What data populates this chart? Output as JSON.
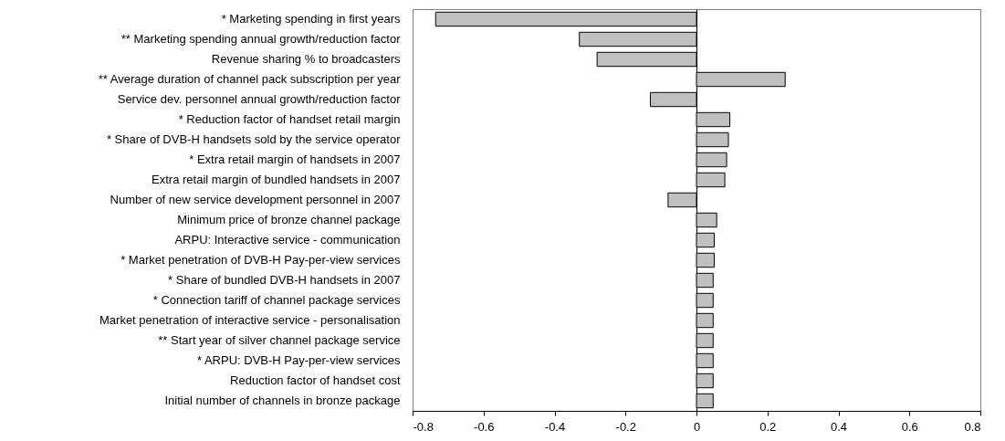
{
  "chart_data": {
    "type": "bar",
    "orientation": "horizontal",
    "categories": [
      "* Marketing spending in first years",
      "** Marketing spending annual growth/reduction factor",
      "Revenue sharing % to broadcasters",
      "** Average duration of channel pack subscription per year",
      "Service dev. personnel annual growth/reduction factor",
      "* Reduction factor of handset retail margin",
      "* Share of DVB-H handsets sold by the service operator",
      "* Extra retail margin of handsets in 2007",
      "Extra retail margin of bundled handsets in 2007",
      "Number of new service development personnel in 2007",
      "Minimum price of bronze channel package",
      "ARPU: Interactive service - communication",
      "* Market penetration of DVB-H Pay-per-view services",
      "* Share of bundled DVB-H handsets in 2007",
      "* Connection tariff of channel package services",
      "Market penetration of interactive service - personalisation",
      "** Start year of silver channel package service",
      "* ARPU: DVB-H Pay-per-view services",
      "Reduction factor of handset cost",
      "Initial number of channels in bronze package"
    ],
    "values": [
      -0.735,
      -0.33,
      -0.28,
      0.25,
      -0.13,
      0.094,
      0.09,
      0.085,
      0.08,
      -0.08,
      0.057,
      0.05,
      0.05,
      0.047,
      0.047,
      0.047,
      0.047,
      0.047,
      0.047,
      0.047
    ],
    "color": "#c0c0c0",
    "xlim": [
      -0.8,
      0.8
    ],
    "xticks": [
      -0.8,
      -0.6,
      -0.4,
      -0.2,
      0,
      0.2,
      0.4,
      0.6,
      0.8
    ]
  }
}
